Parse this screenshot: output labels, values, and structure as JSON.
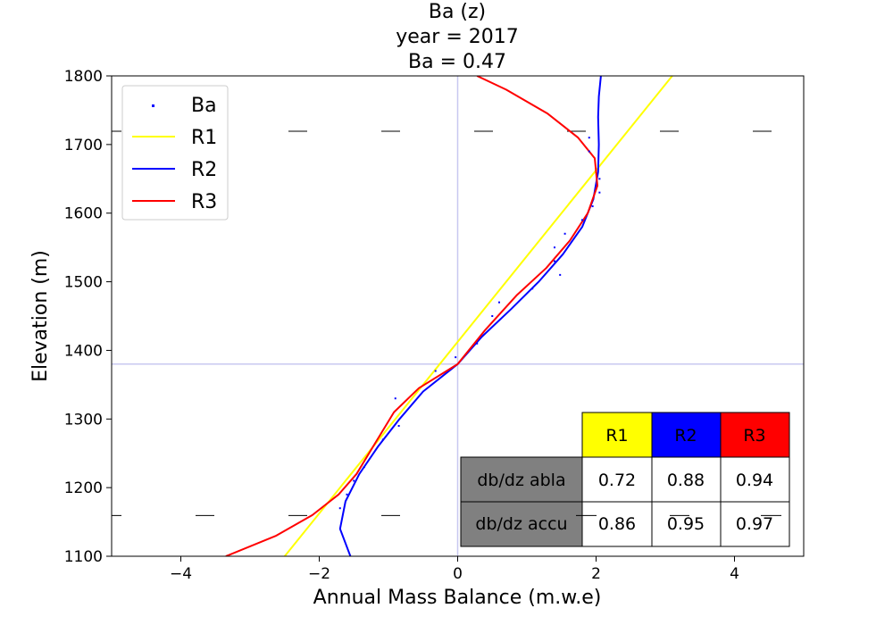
{
  "chart_data": {
    "type": "line",
    "title_lines": [
      "Ba (z)",
      "year = 2017",
      "Ba = 0.47"
    ],
    "xlabel": "Annual Mass Balance (m.w.e)",
    "ylabel": "Elevation (m)",
    "xlim": [
      -5,
      5
    ],
    "ylim": [
      1100,
      1800
    ],
    "x_ticks": [
      -4,
      -2,
      0,
      2,
      4
    ],
    "x_tick_labels": [
      "−4",
      "−2",
      "0",
      "2",
      "4"
    ],
    "y_ticks": [
      1100,
      1200,
      1300,
      1400,
      1500,
      1600,
      1700,
      1800
    ],
    "y_tick_labels": [
      "1100",
      "1200",
      "1300",
      "1400",
      "1500",
      "1600",
      "1700",
      "1800"
    ],
    "grid": false,
    "legend_position": "upper-left",
    "reference_lines": {
      "x": 0,
      "y": 1380,
      "color": "#c8c8f0"
    },
    "dashed_levels": [
      1720,
      1160
    ],
    "series": [
      {
        "name": "Ba",
        "kind": "scatter",
        "color": "#0000ff",
        "points": [
          {
            "x": 1.9,
            "y": 1710
          },
          {
            "x": 1.9,
            "y": 1690
          },
          {
            "x": 2.05,
            "y": 1650
          },
          {
            "x": 2.05,
            "y": 1630
          },
          {
            "x": 1.95,
            "y": 1610
          },
          {
            "x": 1.8,
            "y": 1590
          },
          {
            "x": 1.55,
            "y": 1570
          },
          {
            "x": 1.4,
            "y": 1550
          },
          {
            "x": 1.4,
            "y": 1530
          },
          {
            "x": 1.48,
            "y": 1510
          },
          {
            "x": 1.08,
            "y": 1490
          },
          {
            "x": 0.6,
            "y": 1470
          },
          {
            "x": 0.5,
            "y": 1450
          },
          {
            "x": 0.28,
            "y": 1410
          },
          {
            "x": -0.03,
            "y": 1390
          },
          {
            "x": -0.32,
            "y": 1370
          },
          {
            "x": -0.9,
            "y": 1330
          },
          {
            "x": -0.85,
            "y": 1290
          },
          {
            "x": -1.08,
            "y": 1270
          },
          {
            "x": -1.35,
            "y": 1230
          },
          {
            "x": -1.5,
            "y": 1210
          },
          {
            "x": -1.6,
            "y": 1190
          },
          {
            "x": -1.7,
            "y": 1170
          }
        ]
      },
      {
        "name": "R1",
        "kind": "line",
        "color": "#ffff00",
        "points": [
          {
            "x": -2.5,
            "y": 1100
          },
          {
            "x": 3.1,
            "y": 1800
          }
        ]
      },
      {
        "name": "R2",
        "kind": "line",
        "color": "#0000ff",
        "points": [
          {
            "x": -1.55,
            "y": 1100
          },
          {
            "x": -1.7,
            "y": 1140
          },
          {
            "x": -1.62,
            "y": 1180
          },
          {
            "x": -1.42,
            "y": 1220
          },
          {
            "x": -1.15,
            "y": 1260
          },
          {
            "x": -0.84,
            "y": 1300
          },
          {
            "x": -0.5,
            "y": 1340
          },
          {
            "x": 0.0,
            "y": 1380
          },
          {
            "x": 0.35,
            "y": 1420
          },
          {
            "x": 0.77,
            "y": 1460
          },
          {
            "x": 1.17,
            "y": 1500
          },
          {
            "x": 1.52,
            "y": 1540
          },
          {
            "x": 1.8,
            "y": 1580
          },
          {
            "x": 1.96,
            "y": 1620
          },
          {
            "x": 2.03,
            "y": 1660
          },
          {
            "x": 2.04,
            "y": 1700
          },
          {
            "x": 2.03,
            "y": 1740
          },
          {
            "x": 2.04,
            "y": 1770
          },
          {
            "x": 2.07,
            "y": 1800
          }
        ]
      },
      {
        "name": "R3",
        "kind": "line",
        "color": "#ff0000",
        "points": [
          {
            "x": -3.35,
            "y": 1100
          },
          {
            "x": -2.62,
            "y": 1130
          },
          {
            "x": -2.1,
            "y": 1160
          },
          {
            "x": -1.72,
            "y": 1190
          },
          {
            "x": -1.46,
            "y": 1220
          },
          {
            "x": -1.22,
            "y": 1260
          },
          {
            "x": -0.92,
            "y": 1310
          },
          {
            "x": -0.56,
            "y": 1345
          },
          {
            "x": 0.0,
            "y": 1380
          },
          {
            "x": 0.4,
            "y": 1430
          },
          {
            "x": 0.85,
            "y": 1480
          },
          {
            "x": 1.28,
            "y": 1520
          },
          {
            "x": 1.62,
            "y": 1560
          },
          {
            "x": 1.88,
            "y": 1600
          },
          {
            "x": 2.02,
            "y": 1640
          },
          {
            "x": 1.98,
            "y": 1680
          },
          {
            "x": 1.74,
            "y": 1710
          },
          {
            "x": 1.3,
            "y": 1745
          },
          {
            "x": 0.7,
            "y": 1780
          },
          {
            "x": 0.28,
            "y": 1800
          }
        ]
      }
    ]
  },
  "table": {
    "col_headers": [
      {
        "label": "R1",
        "color": "#ffff00"
      },
      {
        "label": "R2",
        "color": "#0000ff"
      },
      {
        "label": "R3",
        "color": "#ff0000"
      }
    ],
    "row_header_color": "#808080",
    "rows": [
      {
        "label": "db/dz abla",
        "values": [
          "0.72",
          "0.88",
          "0.94"
        ]
      },
      {
        "label": "db/dz accu",
        "values": [
          "0.86",
          "0.95",
          "0.97"
        ]
      }
    ]
  }
}
